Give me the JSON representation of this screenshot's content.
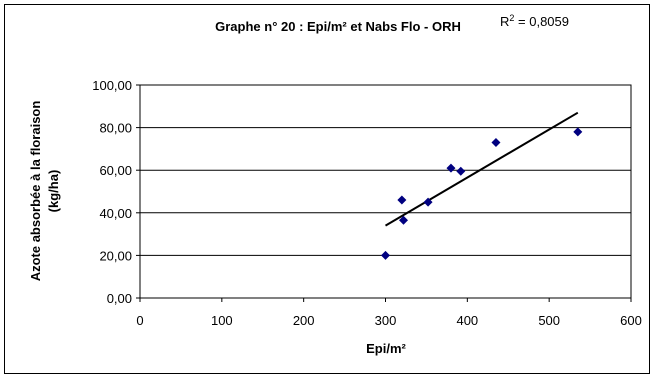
{
  "chart_data": {
    "type": "scatter",
    "title": "Graphe n° 20 : Epi/m² et Nabs Flo - ORH",
    "r2_label": "R",
    "r2_exp": "2",
    "r2_value": " = 0,8059",
    "xlabel": "Epi/m²",
    "ylabel_line1": "Azote absorbée à la floraison",
    "ylabel_line2": "(kg/ha)",
    "xlim": [
      0,
      600
    ],
    "ylim": [
      0,
      100
    ],
    "x_ticks": [
      0,
      100,
      200,
      300,
      400,
      500,
      600
    ],
    "x_tick_labels": [
      "0",
      "100",
      "200",
      "300",
      "400",
      "500",
      "600"
    ],
    "y_ticks": [
      0,
      20,
      40,
      60,
      80,
      100
    ],
    "y_tick_labels": [
      "0,00",
      "20,00",
      "40,00",
      "60,00",
      "80,00",
      "100,00"
    ],
    "grid": "horizontal",
    "series": [
      {
        "points": [
          {
            "x": 300,
            "y": 20
          },
          {
            "x": 320,
            "y": 46
          },
          {
            "x": 322,
            "y": 36.5
          },
          {
            "x": 352,
            "y": 45
          },
          {
            "x": 380,
            "y": 61
          },
          {
            "x": 392,
            "y": 59.5
          },
          {
            "x": 435,
            "y": 73
          },
          {
            "x": 535,
            "y": 78
          }
        ]
      }
    ],
    "trendline": {
      "x": [
        300,
        535
      ],
      "y": [
        34,
        87
      ]
    },
    "colors": {
      "marker": "#000080",
      "trendline": "#000000",
      "grid": "#000000"
    }
  }
}
